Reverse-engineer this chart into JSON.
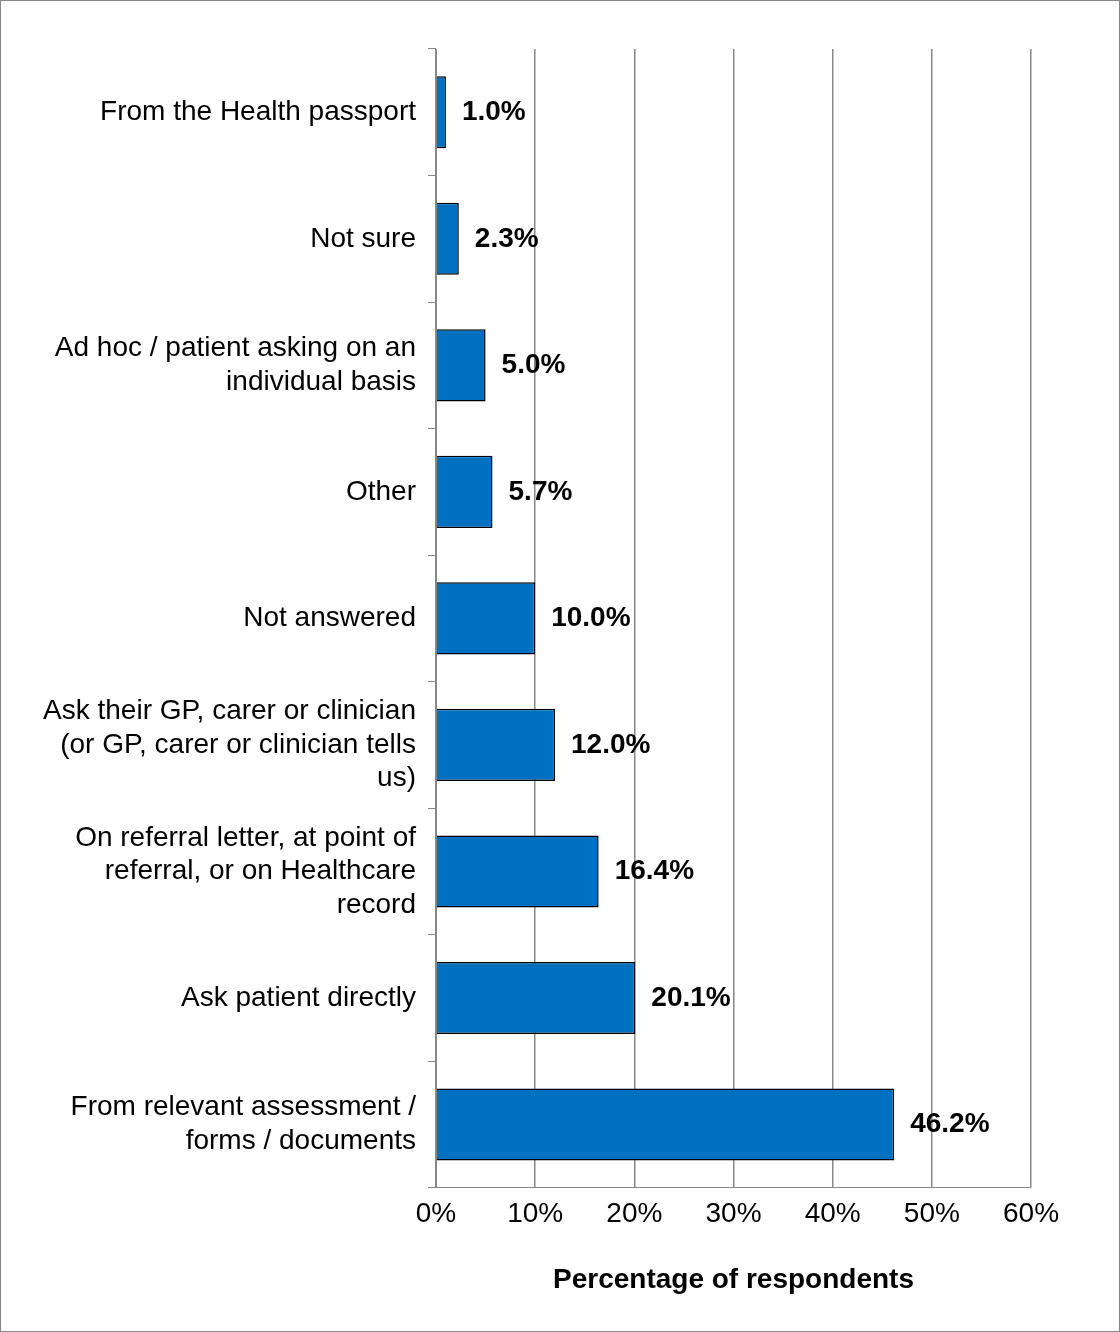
{
  "chart_data": {
    "type": "bar",
    "orientation": "horizontal",
    "xlabel": "Percentage of respondents",
    "categories": [
      "From the Health passport",
      "Not sure",
      "Ad hoc / patient asking on an individual basis",
      "Other",
      "Not answered",
      "Ask their GP, carer or clinician (or GP, carer or clinician tells us)",
      "On referral letter, at point of referral, or on Healthcare record",
      "Ask patient directly",
      "From relevant assessment / forms / documents"
    ],
    "values": [
      1.0,
      2.3,
      5.0,
      5.7,
      10.0,
      12.0,
      16.4,
      20.1,
      46.2
    ],
    "value_labels": [
      "1.0%",
      "2.3%",
      "5.0%",
      "5.7%",
      "10.0%",
      "12.0%",
      "16.4%",
      "20.1%",
      "46.2%"
    ],
    "color": "#0070c0",
    "xlim": [
      0,
      60
    ],
    "xticks": [
      {
        "value": 0,
        "label": "0%"
      },
      {
        "value": 10,
        "label": "10%"
      },
      {
        "value": 20,
        "label": "20%"
      },
      {
        "value": 30,
        "label": "30%"
      },
      {
        "value": 40,
        "label": "40%"
      },
      {
        "value": 50,
        "label": "50%"
      },
      {
        "value": 60,
        "label": "60%"
      }
    ],
    "grid": "x",
    "legend": false
  }
}
